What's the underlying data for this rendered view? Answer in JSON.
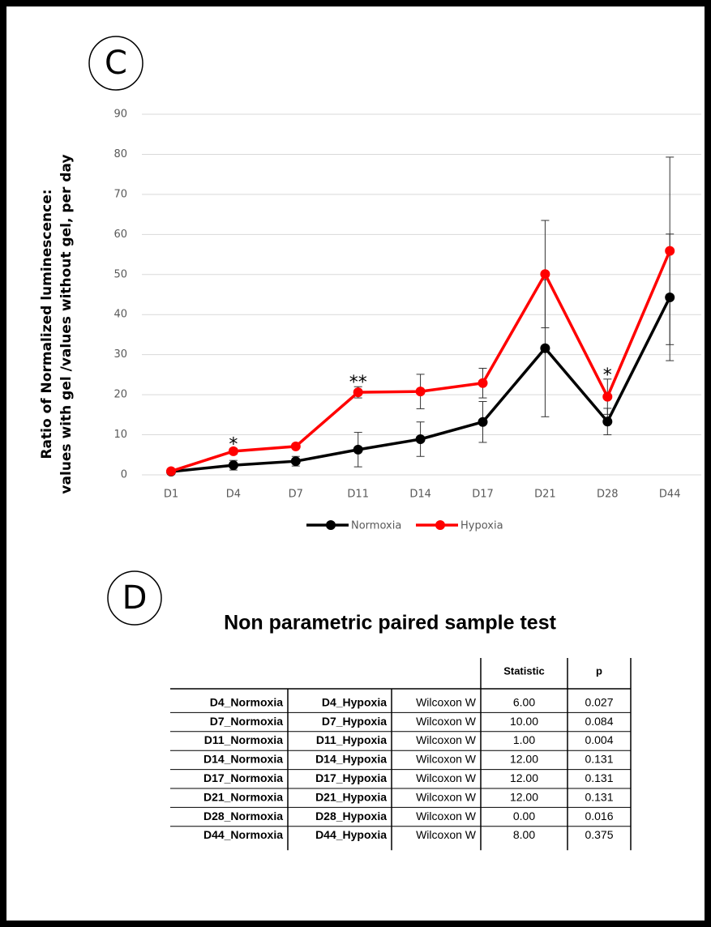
{
  "panel_labels": [
    "C",
    "D"
  ],
  "chart_data": {
    "type": "line",
    "y_label": [
      "Ratio of Normalized luminescence:",
      "values with gel /values without  gel, per day"
    ],
    "categories": [
      "D1",
      "D4",
      "D7",
      "D11",
      "D14",
      "D17",
      "D21",
      "D28",
      "D44"
    ],
    "series": [
      {
        "name": "Normoxia",
        "color": "#000000",
        "values": [
          0.8,
          2.4,
          3.4,
          6.3,
          8.9,
          13.2,
          31.6,
          13.3,
          44.3
        ],
        "errors": [
          0.3,
          1.2,
          1.2,
          4.3,
          4.3,
          5.1,
          17.1,
          3.3,
          15.8
        ]
      },
      {
        "name": "Hypoxia",
        "color": "#ff0000",
        "values": [
          0.9,
          5.9,
          7.1,
          20.6,
          20.8,
          22.9,
          50.1,
          19.5,
          55.9
        ],
        "errors": [
          0.2,
          0.7,
          0.5,
          1.4,
          4.3,
          3.7,
          13.4,
          4.4,
          23.4
        ]
      }
    ],
    "significance": [
      null,
      "*",
      null,
      "**",
      null,
      null,
      null,
      "*",
      null
    ],
    "ylim": [
      0,
      90
    ],
    "yticks": [
      0,
      10,
      20,
      30,
      40,
      50,
      60,
      70,
      80,
      90
    ],
    "grid": true,
    "legend": "bottom"
  },
  "table": {
    "title": "Non parametric paired sample test",
    "header": [
      "Statistic",
      "p"
    ],
    "rows": [
      [
        "D4_Normoxia",
        "D4_Hypoxia",
        "Wilcoxon W",
        "6.00",
        "0.027"
      ],
      [
        "D7_Normoxia",
        "D7_Hypoxia",
        "Wilcoxon W",
        "10.00",
        "0.084"
      ],
      [
        "D11_Normoxia",
        "D11_Hypoxia",
        "Wilcoxon W",
        "1.00",
        "0.004"
      ],
      [
        "D14_Normoxia",
        "D14_Hypoxia",
        "Wilcoxon W",
        "12.00",
        "0.131"
      ],
      [
        "D17_Normoxia",
        "D17_Hypoxia",
        "Wilcoxon W",
        "12.00",
        "0.131"
      ],
      [
        "D21_Normoxia",
        "D21_Hypoxia",
        "Wilcoxon W",
        "12.00",
        "0.131"
      ],
      [
        "D28_Normoxia",
        "D28_Hypoxia",
        "Wilcoxon W",
        "0.00",
        "0.016"
      ],
      [
        "D44_Normoxia",
        "D44_Hypoxia",
        "Wilcoxon W",
        "8.00",
        "0.375"
      ]
    ]
  }
}
